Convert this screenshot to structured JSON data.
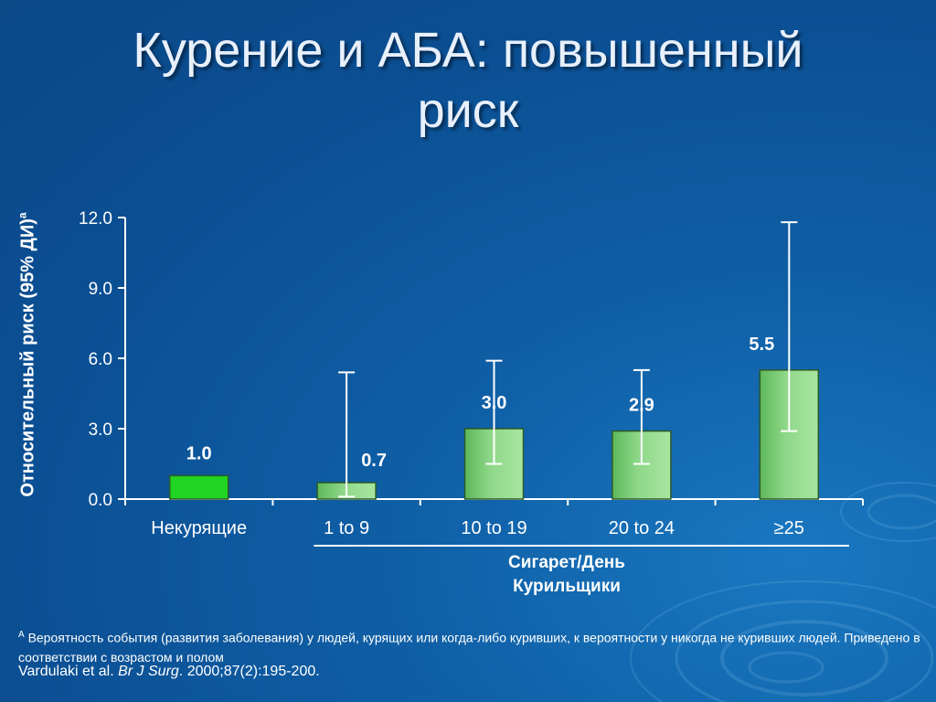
{
  "slide": {
    "title_line1": "Курение и АБА: повышенный",
    "title_line2": "риск"
  },
  "chart_data": {
    "type": "bar",
    "ylabel": "Относительный риск  (95% ДИ)",
    "ylabel_sup": "a",
    "categories": [
      "Некурящие",
      "1 to 9",
      "10 to 19",
      "20 to 24",
      "≥25"
    ],
    "values": [
      1.0,
      0.7,
      3.0,
      2.9,
      5.5
    ],
    "value_labels": [
      "1.0",
      "0.7",
      "3.0",
      "2.9",
      "5.5"
    ],
    "ci_low": [
      null,
      0.1,
      1.5,
      1.5,
      2.9
    ],
    "ci_high": [
      null,
      5.4,
      5.9,
      5.5,
      11.8
    ],
    "ylim": [
      0,
      12
    ],
    "yticks": [
      0,
      3,
      6,
      9,
      12
    ],
    "ytick_labels": [
      "0.0",
      "3.0",
      "6.0",
      "9.0",
      "12.0"
    ],
    "group_label_line1": "Сигарет/День",
    "group_label_line2": "Курильщики",
    "colors": {
      "nonsmoker": "#22d422",
      "smoker": "#8fd88a",
      "axis": "#ffffff"
    }
  },
  "footnote": {
    "marker": "A",
    "text": "Вероятность события (развития заболевания) у людей, курящих или когда-либо куривших, к вероятности у никогда не куривших людей. Приведено в соответствии с возрастом и полом"
  },
  "citation": {
    "authors": "Vardulaki et al.",
    "journal": "Br J Surg",
    "details": ". 2000;87(2):195-200."
  }
}
